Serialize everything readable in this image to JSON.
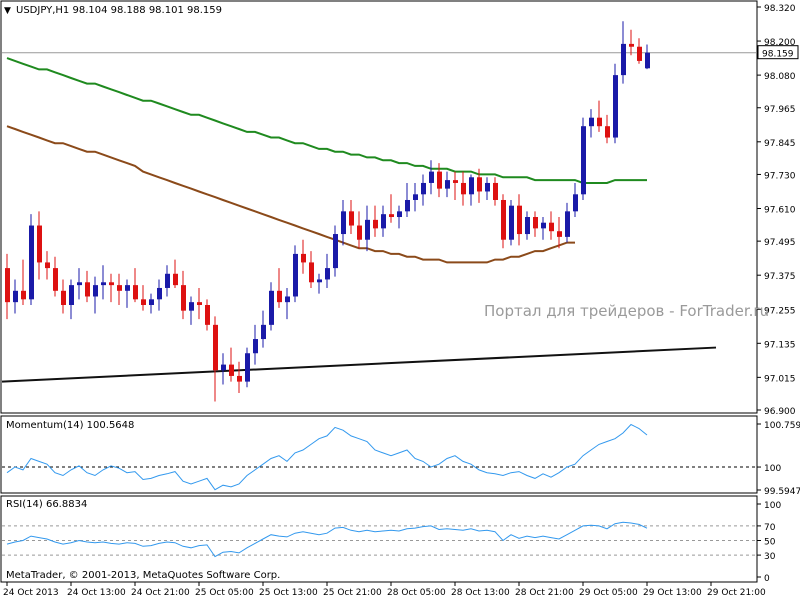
{
  "main_header": "USDJPY,H1  98.104 98.188 98.101 98.159",
  "watermark": "Портал для трейдеров - ForTrader.ru",
  "copyright": "MetaTrader, © 2001-2013, MetaQuotes Software Corp.",
  "colors": {
    "bull": "#1a1aa8",
    "bear": "#dd1111",
    "ma_slow": "#8b4a1a",
    "ma_fast": "#1f8a1f",
    "trend": "#111111",
    "indicator": "#3399ee",
    "price_line": "#999999",
    "watermark": "#9a9a9a"
  },
  "price_axis": {
    "min": 96.9,
    "max": 98.32,
    "ticks": [
      "98.320",
      "98.200",
      "98.080",
      "97.965",
      "97.845",
      "97.730",
      "97.610",
      "97.495",
      "97.375",
      "97.255",
      "97.135",
      "97.015",
      "96.900"
    ],
    "current_label": "98.159",
    "current_value": 98.159
  },
  "time_axis": {
    "labels": [
      "24 Oct 2013",
      "24 Oct 13:00",
      "24 Oct 21:00",
      "25 Oct 05:00",
      "25 Oct 13:00",
      "25 Oct 21:00",
      "28 Oct 05:00",
      "28 Oct 13:00",
      "28 Oct 21:00",
      "29 Oct 05:00",
      "29 Oct 13:00",
      "29 Oct 21:00"
    ],
    "label_bar_index": [
      0,
      8,
      16,
      24,
      32,
      40,
      48,
      56,
      64,
      72,
      80,
      88
    ]
  },
  "momentum_panel": {
    "header": "Momentum(14) 100.5648",
    "ticks": [
      "100.7597",
      "100",
      "99.5947"
    ],
    "min": 99.5947,
    "max": 100.7597,
    "level": 100
  },
  "rsi_panel": {
    "header": "RSI(14) 66.8834",
    "ticks": [
      "100",
      "70",
      "50",
      "30",
      "0"
    ],
    "min": 0,
    "max": 100,
    "levels": [
      70,
      50,
      30
    ]
  },
  "chart_data": [
    {
      "type": "candlestick",
      "title": "USDJPY,H1",
      "series": [
        {
          "name": "USDJPY,H1",
          "ohlc": [
            [
              97.4,
              97.45,
              97.22,
              97.28
            ],
            [
              97.28,
              97.36,
              97.24,
              97.32
            ],
            [
              97.32,
              97.43,
              97.27,
              97.29
            ],
            [
              97.29,
              97.59,
              97.27,
              97.55
            ],
            [
              97.55,
              97.6,
              97.36,
              97.42
            ],
            [
              97.42,
              97.46,
              97.36,
              97.4
            ],
            [
              97.4,
              97.44,
              97.3,
              97.32
            ],
            [
              97.32,
              97.36,
              97.24,
              97.27
            ],
            [
              97.27,
              97.36,
              97.22,
              97.34
            ],
            [
              97.34,
              97.4,
              97.29,
              97.35
            ],
            [
              97.35,
              97.39,
              97.28,
              97.3
            ],
            [
              97.3,
              97.37,
              97.24,
              97.34
            ],
            [
              97.34,
              97.41,
              97.29,
              97.35
            ],
            [
              97.35,
              97.38,
              97.28,
              97.34
            ],
            [
              97.34,
              97.38,
              97.27,
              97.32
            ],
            [
              97.32,
              97.36,
              97.26,
              97.34
            ],
            [
              97.34,
              97.4,
              97.28,
              97.29
            ],
            [
              97.29,
              97.34,
              97.25,
              97.27
            ],
            [
              97.27,
              97.31,
              97.24,
              97.29
            ],
            [
              97.29,
              97.36,
              97.25,
              97.33
            ],
            [
              97.33,
              97.41,
              97.3,
              97.38
            ],
            [
              97.38,
              97.43,
              97.33,
              97.34
            ],
            [
              97.34,
              97.39,
              97.22,
              97.25
            ],
            [
              97.25,
              97.3,
              97.2,
              97.28
            ],
            [
              97.28,
              97.33,
              97.22,
              97.27
            ],
            [
              97.27,
              97.29,
              97.18,
              97.2
            ],
            [
              97.2,
              97.23,
              96.93,
              97.04
            ],
            [
              97.04,
              97.1,
              96.99,
              97.06
            ],
            [
              97.06,
              97.12,
              97.0,
              97.02
            ],
            [
              97.02,
              97.07,
              96.96,
              97.0
            ],
            [
              97.0,
              97.12,
              96.98,
              97.1
            ],
            [
              97.1,
              97.2,
              97.06,
              97.15
            ],
            [
              97.15,
              97.25,
              97.12,
              97.2
            ],
            [
              97.2,
              97.35,
              97.18,
              97.32
            ],
            [
              97.32,
              97.4,
              97.26,
              97.28
            ],
            [
              97.28,
              97.33,
              97.22,
              97.3
            ],
            [
              97.3,
              97.48,
              97.28,
              97.45
            ],
            [
              97.45,
              97.5,
              97.38,
              97.42
            ],
            [
              97.42,
              97.46,
              97.33,
              97.35
            ],
            [
              97.35,
              97.38,
              97.31,
              97.36
            ],
            [
              97.36,
              97.45,
              97.33,
              97.4
            ],
            [
              97.4,
              97.55,
              97.37,
              97.52
            ],
            [
              97.52,
              97.64,
              97.48,
              97.6
            ],
            [
              97.6,
              97.64,
              97.52,
              97.55
            ],
            [
              97.55,
              97.6,
              97.47,
              97.5
            ],
            [
              97.5,
              97.62,
              97.46,
              97.57
            ],
            [
              97.57,
              97.62,
              97.51,
              97.54
            ],
            [
              97.54,
              97.62,
              97.51,
              97.59
            ],
            [
              97.59,
              97.66,
              97.56,
              97.58
            ],
            [
              97.58,
              97.62,
              97.54,
              97.6
            ],
            [
              97.6,
              97.7,
              97.58,
              97.64
            ],
            [
              97.64,
              97.7,
              97.6,
              97.66
            ],
            [
              97.66,
              97.73,
              97.62,
              97.7
            ],
            [
              97.7,
              97.78,
              97.66,
              97.74
            ],
            [
              97.74,
              97.77,
              97.65,
              97.68
            ],
            [
              97.68,
              97.74,
              97.65,
              97.71
            ],
            [
              97.71,
              97.74,
              97.64,
              97.7
            ],
            [
              97.7,
              97.74,
              97.62,
              97.66
            ],
            [
              97.66,
              97.73,
              97.62,
              97.72
            ],
            [
              97.72,
              97.75,
              97.63,
              97.67
            ],
            [
              97.67,
              97.72,
              97.64,
              97.7
            ],
            [
              97.7,
              97.72,
              97.62,
              97.64
            ],
            [
              97.64,
              97.66,
              97.47,
              97.5
            ],
            [
              97.5,
              97.64,
              97.48,
              97.62
            ],
            [
              97.62,
              97.66,
              97.48,
              97.52
            ],
            [
              97.52,
              97.6,
              97.5,
              97.58
            ],
            [
              97.58,
              97.6,
              97.51,
              97.54
            ],
            [
              97.54,
              97.58,
              97.5,
              97.56
            ],
            [
              97.56,
              97.6,
              97.5,
              97.53
            ],
            [
              97.53,
              97.58,
              97.47,
              97.51
            ],
            [
              97.51,
              97.63,
              97.49,
              97.6
            ],
            [
              97.6,
              97.7,
              97.58,
              97.66
            ],
            [
              97.66,
              97.93,
              97.64,
              97.9
            ],
            [
              97.9,
              97.96,
              97.86,
              97.93
            ],
            [
              97.93,
              97.99,
              97.88,
              97.9
            ],
            [
              97.9,
              97.94,
              97.84,
              97.86
            ],
            [
              97.86,
              98.12,
              97.84,
              98.08
            ],
            [
              98.08,
              98.27,
              98.05,
              98.19
            ],
            [
              98.19,
              98.24,
              98.15,
              98.18
            ],
            [
              98.18,
              98.21,
              98.12,
              98.13
            ],
            [
              98.104,
              98.188,
              98.101,
              98.159
            ]
          ]
        }
      ],
      "overlays": [
        {
          "name": "ma-fast",
          "values": [
            98.14,
            98.13,
            98.12,
            98.11,
            98.1,
            98.1,
            98.09,
            98.08,
            98.07,
            98.06,
            98.05,
            98.05,
            98.04,
            98.03,
            98.02,
            98.01,
            98.0,
            97.99,
            97.99,
            97.98,
            97.97,
            97.96,
            97.95,
            97.94,
            97.94,
            97.93,
            97.92,
            97.91,
            97.9,
            97.89,
            97.88,
            97.88,
            97.87,
            97.86,
            97.86,
            97.85,
            97.84,
            97.84,
            97.83,
            97.82,
            97.82,
            97.81,
            97.81,
            97.8,
            97.8,
            97.79,
            97.79,
            97.78,
            97.78,
            97.77,
            97.77,
            97.76,
            97.76,
            97.75,
            97.75,
            97.75,
            97.74,
            97.74,
            97.74,
            97.73,
            97.73,
            97.73,
            97.72,
            97.72,
            97.72,
            97.72,
            97.71,
            97.71,
            97.71,
            97.71,
            97.71,
            97.71,
            97.7,
            97.7,
            97.7,
            97.7,
            97.71,
            97.71,
            97.71,
            97.71,
            97.71
          ]
        },
        {
          "name": "ma-slow",
          "values": [
            97.9,
            97.89,
            97.88,
            97.87,
            97.86,
            97.85,
            97.84,
            97.84,
            97.83,
            97.82,
            97.81,
            97.81,
            97.8,
            97.79,
            97.78,
            97.77,
            97.76,
            97.74,
            97.73,
            97.72,
            97.71,
            97.7,
            97.69,
            97.68,
            97.67,
            97.66,
            97.65,
            97.64,
            97.63,
            97.62,
            97.61,
            97.6,
            97.59,
            97.58,
            97.57,
            97.56,
            97.55,
            97.54,
            97.53,
            97.52,
            97.51,
            97.5,
            97.49,
            97.48,
            97.47,
            97.47,
            97.46,
            97.46,
            97.45,
            97.45,
            97.44,
            97.44,
            97.43,
            97.43,
            97.43,
            97.42,
            97.42,
            97.42,
            97.42,
            97.42,
            97.42,
            97.43,
            97.43,
            97.44,
            97.44,
            97.45,
            97.46,
            97.46,
            97.47,
            97.48,
            97.49,
            97.49
          ]
        },
        {
          "name": "trendline",
          "start_index": 0,
          "start_value": 97.0,
          "end_index": 88,
          "end_value": 97.12
        }
      ],
      "xlabel": "",
      "ylabel": "",
      "ylim": [
        96.9,
        98.32
      ]
    },
    {
      "type": "line",
      "title": "Momentum(14)",
      "series": [
        {
          "name": "Momentum(14)",
          "values": [
            99.9,
            100.0,
            99.95,
            100.15,
            100.1,
            100.05,
            99.9,
            99.85,
            99.95,
            100.02,
            99.9,
            99.85,
            99.95,
            100.02,
            99.98,
            99.9,
            99.92,
            99.78,
            99.8,
            99.85,
            99.88,
            99.92,
            99.75,
            99.7,
            99.75,
            99.8,
            99.6,
            99.68,
            99.65,
            99.7,
            99.85,
            99.95,
            100.05,
            100.15,
            100.2,
            100.1,
            100.25,
            100.3,
            100.4,
            100.5,
            100.55,
            100.7,
            100.65,
            100.55,
            100.5,
            100.45,
            100.3,
            100.25,
            100.2,
            100.25,
            100.3,
            100.15,
            100.1,
            100.0,
            100.05,
            100.15,
            100.2,
            100.1,
            100.05,
            99.95,
            99.9,
            99.88,
            99.85,
            99.9,
            99.92,
            99.85,
            99.8,
            99.88,
            99.82,
            99.9,
            100.0,
            100.05,
            100.2,
            100.3,
            100.4,
            100.45,
            100.5,
            100.6,
            100.75,
            100.68,
            100.5648
          ]
        }
      ],
      "ylim": [
        99.5947,
        100.7597
      ]
    },
    {
      "type": "line",
      "title": "RSI(14)",
      "series": [
        {
          "name": "RSI(14)",
          "values": [
            45,
            48,
            50,
            56,
            54,
            52,
            48,
            45,
            47,
            50,
            48,
            47,
            48,
            46,
            45,
            47,
            46,
            42,
            43,
            46,
            48,
            47,
            42,
            40,
            43,
            44,
            28,
            34,
            35,
            33,
            40,
            46,
            52,
            58,
            56,
            55,
            60,
            62,
            60,
            58,
            60,
            67,
            68,
            64,
            62,
            64,
            62,
            63,
            64,
            63,
            66,
            67,
            69,
            70,
            65,
            66,
            65,
            64,
            66,
            63,
            64,
            62,
            50,
            58,
            53,
            56,
            54,
            56,
            54,
            52,
            58,
            64,
            70,
            71,
            70,
            66,
            73,
            75,
            74,
            72,
            66.8834
          ]
        }
      ],
      "ylim": [
        0,
        100
      ]
    }
  ]
}
